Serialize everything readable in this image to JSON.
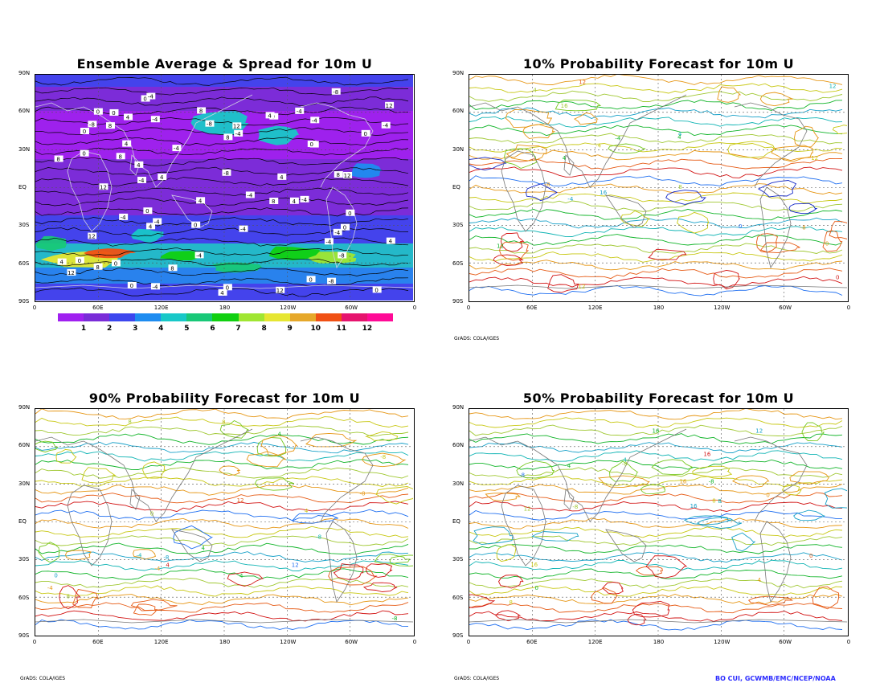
{
  "panels": [
    {
      "id": "avg",
      "title": "Ensemble Average & Spread for 10m U",
      "credit": ""
    },
    {
      "id": "p10",
      "title": "10% Probability Forecast for 10m U",
      "credit": "GrADS: COLA/IGES"
    },
    {
      "id": "p90",
      "title": "90% Probability Forecast for 10m U",
      "credit": "GrADS: COLA/IGES"
    },
    {
      "id": "p50",
      "title": "50% Probability Forecast for 10m U",
      "credit": "GrADS: COLA/IGES"
    }
  ],
  "lat_labels": [
    "90N",
    "60N",
    "30N",
    "EQ",
    "30S",
    "60S",
    "90S"
  ],
  "lon_labels": [
    "0",
    "60E",
    "120E",
    "180",
    "120W",
    "60W",
    "0"
  ],
  "colorbar": {
    "labels": [
      "1",
      "2",
      "3",
      "4",
      "5",
      "6",
      "7",
      "8",
      "9",
      "10",
      "11",
      "12"
    ],
    "colors": [
      "#a020f0",
      "#7a2cd8",
      "#3c46ee",
      "#1e8cf0",
      "#18c8c8",
      "#18c878",
      "#10d010",
      "#a0e632",
      "#e6e632",
      "#e6a82a",
      "#f05014",
      "#e6146e",
      "#ff0a96"
    ]
  },
  "contour_colors": {
    "neg": [
      "#1428c8",
      "#1e6ef0",
      "#16a0c8",
      "#10b4b4"
    ],
    "pos": [
      "#10b428",
      "#78c820",
      "#c8c814",
      "#e69614",
      "#e65a14",
      "#d21414"
    ],
    "zero": "#a0c832"
  },
  "author": "BO CUI, GCWMB/EMC/NCEP/NOAA"
}
